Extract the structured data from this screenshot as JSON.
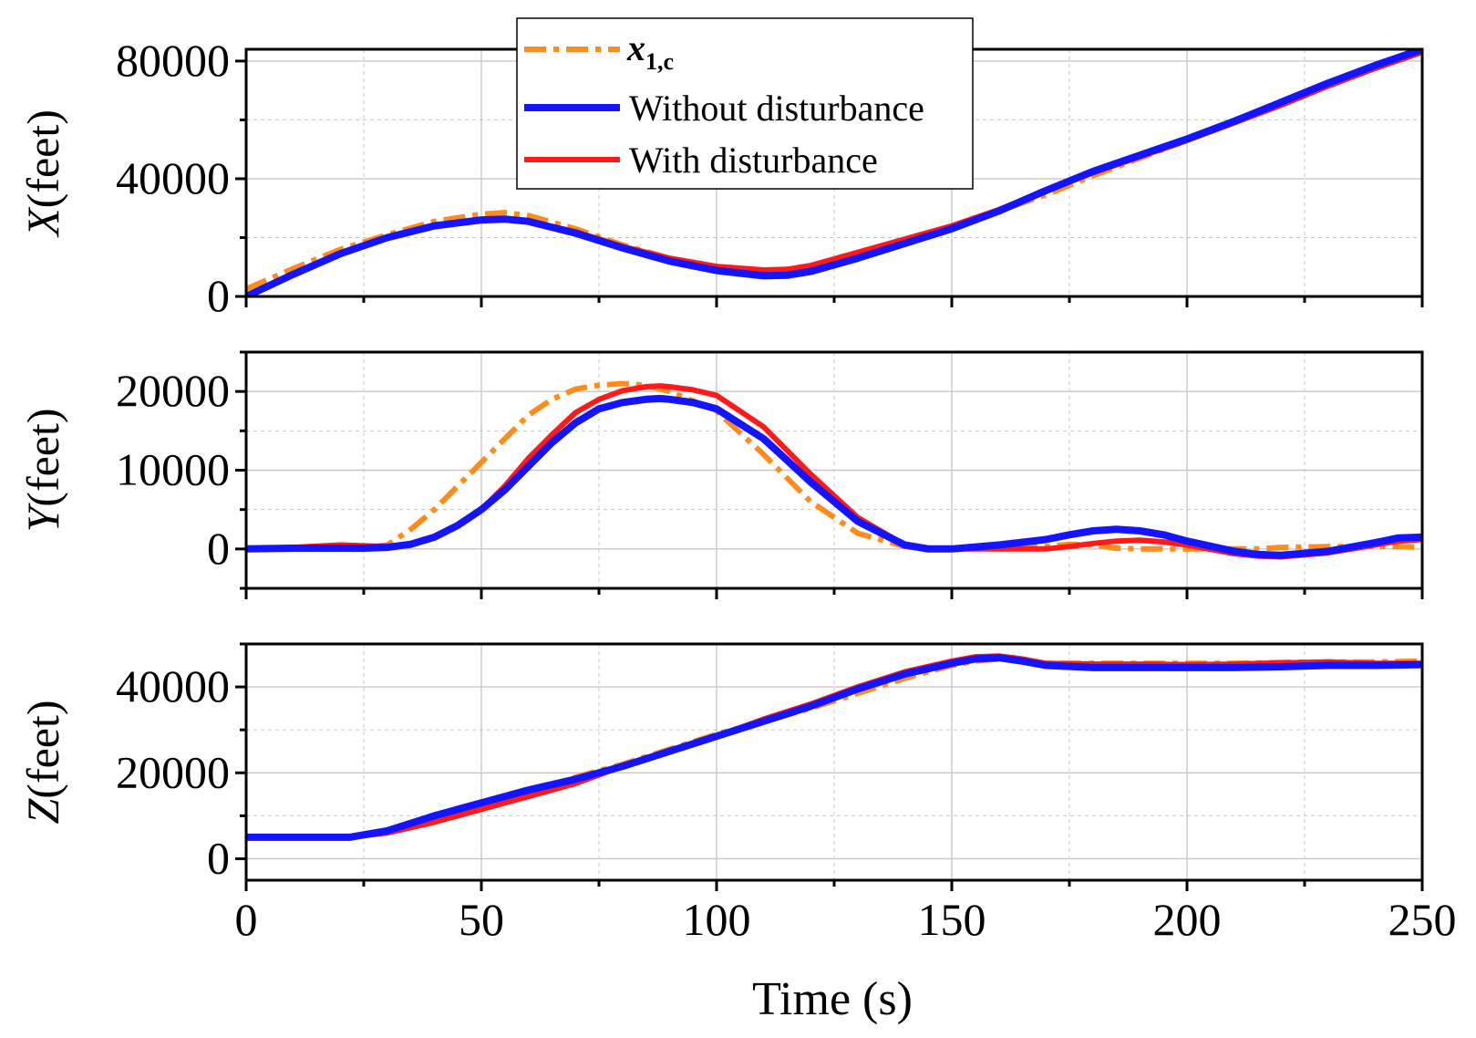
{
  "chart_data": [
    {
      "type": "line",
      "ylabel": "X(feet)",
      "ylabel_var": "X",
      "ylabel_unit": "(feet)",
      "xlim": [
        0,
        250
      ],
      "ylim": [
        0,
        84000
      ],
      "yticks": [
        0,
        40000,
        80000
      ],
      "ytick_labels": [
        "0",
        "40000",
        "80000"
      ],
      "grid": true,
      "series": [
        {
          "name": "x1c",
          "x": [
            0,
            10,
            20,
            30,
            40,
            50,
            55,
            60,
            70,
            80,
            90,
            100,
            110,
            115,
            120,
            130,
            140,
            150,
            160,
            170,
            180,
            190,
            200,
            210,
            220,
            230,
            240,
            250
          ],
          "y": [
            2500,
            9500,
            16000,
            21000,
            25500,
            28000,
            28500,
            27500,
            23000,
            17500,
            13000,
            10000,
            8500,
            8500,
            9500,
            13500,
            18000,
            23000,
            29000,
            34500,
            41000,
            47000,
            53000,
            59000,
            65500,
            72000,
            78000,
            83500
          ]
        },
        {
          "name": "Without disturbance",
          "x": [
            0,
            10,
            20,
            30,
            40,
            50,
            55,
            60,
            70,
            80,
            90,
            100,
            110,
            115,
            120,
            130,
            140,
            150,
            160,
            170,
            180,
            190,
            200,
            210,
            220,
            230,
            240,
            250
          ],
          "y": [
            0,
            7500,
            14500,
            20000,
            24000,
            26000,
            26300,
            25500,
            21500,
            16500,
            12000,
            8800,
            7000,
            7200,
            8500,
            13000,
            18000,
            23000,
            29000,
            36000,
            42500,
            48000,
            53500,
            59500,
            66000,
            72500,
            78500,
            84000
          ]
        },
        {
          "name": "With disturbance",
          "x": [
            0,
            10,
            20,
            30,
            40,
            50,
            55,
            60,
            70,
            80,
            90,
            100,
            110,
            115,
            120,
            130,
            140,
            150,
            160,
            170,
            180,
            190,
            200,
            210,
            220,
            230,
            240,
            250
          ],
          "y": [
            0,
            7500,
            14500,
            20000,
            24000,
            25800,
            26000,
            25500,
            22000,
            17000,
            13000,
            10200,
            9000,
            9200,
            10500,
            15000,
            19500,
            24000,
            29500,
            36000,
            42000,
            47500,
            53000,
            59000,
            65000,
            71500,
            77500,
            83000
          ]
        }
      ]
    },
    {
      "type": "line",
      "ylabel": "Y(feet)",
      "ylabel_var": "Y",
      "ylabel_unit": "(feet)",
      "xlim": [
        0,
        250
      ],
      "ylim": [
        -5000,
        25000
      ],
      "yticks": [
        0,
        10000,
        20000
      ],
      "ytick_labels": [
        "0",
        "10000",
        "20000"
      ],
      "grid": true,
      "series": [
        {
          "name": "x1c",
          "x": [
            0,
            10,
            20,
            25,
            30,
            35,
            40,
            45,
            50,
            55,
            60,
            65,
            70,
            75,
            80,
            85,
            90,
            95,
            100,
            110,
            120,
            130,
            140,
            145,
            150,
            160,
            170,
            175,
            180,
            185,
            190,
            195,
            200,
            210,
            215,
            220,
            230,
            240,
            245,
            250
          ],
          "y": [
            0,
            100,
            200,
            200,
            500,
            2500,
            5000,
            8000,
            11000,
            14000,
            17000,
            19000,
            20300,
            20800,
            21000,
            20800,
            20000,
            18800,
            17500,
            12000,
            6000,
            2000,
            300,
            0,
            0,
            100,
            300,
            600,
            500,
            100,
            0,
            0,
            0,
            0,
            0,
            200,
            300,
            300,
            300,
            200
          ]
        },
        {
          "name": "Without disturbance",
          "x": [
            0,
            10,
            20,
            25,
            30,
            35,
            40,
            45,
            50,
            55,
            60,
            65,
            70,
            75,
            80,
            85,
            88,
            90,
            95,
            100,
            110,
            120,
            130,
            140,
            145,
            150,
            160,
            170,
            175,
            180,
            185,
            190,
            195,
            200,
            210,
            215,
            220,
            230,
            240,
            245,
            250
          ],
          "y": [
            0,
            100,
            100,
            100,
            200,
            600,
            1500,
            3000,
            5000,
            7500,
            10500,
            13500,
            16000,
            17800,
            18600,
            19000,
            19100,
            19000,
            18600,
            17800,
            14000,
            8500,
            3500,
            500,
            0,
            0,
            500,
            1200,
            1800,
            2300,
            2500,
            2300,
            1800,
            1000,
            -300,
            -700,
            -800,
            -300,
            800,
            1400,
            1500
          ]
        },
        {
          "name": "With disturbance",
          "x": [
            0,
            10,
            20,
            25,
            30,
            35,
            40,
            45,
            50,
            55,
            60,
            65,
            70,
            75,
            80,
            85,
            88,
            90,
            95,
            100,
            110,
            120,
            130,
            140,
            145,
            150,
            160,
            170,
            175,
            180,
            185,
            190,
            195,
            200,
            210,
            215,
            220,
            230,
            240,
            245,
            250
          ],
          "y": [
            0,
            200,
            500,
            400,
            300,
            600,
            1500,
            3000,
            5000,
            8000,
            11500,
            14500,
            17300,
            19000,
            20100,
            20600,
            20700,
            20600,
            20200,
            19500,
            15500,
            9500,
            4000,
            500,
            0,
            0,
            0,
            0,
            300,
            700,
            1000,
            1100,
            900,
            500,
            -600,
            -900,
            -1000,
            -500,
            500,
            1000,
            1200
          ]
        }
      ]
    },
    {
      "type": "line",
      "ylabel": "Z(feet)",
      "ylabel_var": "Z",
      "ylabel_unit": "(feet)",
      "xlim": [
        0,
        250
      ],
      "ylim": [
        -5000,
        50000
      ],
      "yticks": [
        0,
        20000,
        40000
      ],
      "ytick_labels": [
        "0",
        "20000",
        "40000"
      ],
      "grid": true,
      "series": [
        {
          "name": "x1c",
          "x": [
            0,
            10,
            20,
            22,
            30,
            40,
            50,
            60,
            70,
            80,
            90,
            100,
            110,
            120,
            130,
            140,
            150,
            155,
            160,
            165,
            170,
            180,
            190,
            200,
            210,
            220,
            230,
            240,
            250
          ],
          "y": [
            5000,
            5000,
            5000,
            5000,
            6000,
            9000,
            12000,
            15500,
            19000,
            22000,
            25500,
            29000,
            32000,
            35000,
            38500,
            42000,
            45000,
            46000,
            46500,
            46000,
            45500,
            45500,
            45500,
            45500,
            45500,
            45700,
            45800,
            45800,
            46000
          ]
        },
        {
          "name": "Without disturbance",
          "x": [
            0,
            10,
            20,
            22,
            30,
            40,
            50,
            60,
            70,
            80,
            90,
            100,
            110,
            120,
            130,
            140,
            150,
            155,
            160,
            165,
            170,
            180,
            190,
            200,
            210,
            220,
            230,
            240,
            250
          ],
          "y": [
            5000,
            5000,
            5000,
            5000,
            6500,
            10000,
            13000,
            16000,
            18500,
            21500,
            25000,
            28500,
            32000,
            35500,
            39500,
            43000,
            45500,
            46500,
            46800,
            46000,
            45000,
            44500,
            44500,
            44500,
            44500,
            44700,
            45000,
            45000,
            45200
          ]
        },
        {
          "name": "With disturbance",
          "x": [
            0,
            10,
            20,
            22,
            30,
            40,
            50,
            60,
            70,
            80,
            90,
            100,
            110,
            120,
            130,
            140,
            150,
            155,
            160,
            165,
            170,
            180,
            190,
            200,
            210,
            220,
            230,
            240,
            250
          ],
          "y": [
            5000,
            5000,
            5000,
            5000,
            6000,
            8500,
            11500,
            14500,
            17500,
            21500,
            25000,
            28500,
            32500,
            36000,
            40000,
            43500,
            46000,
            47000,
            47200,
            46500,
            45500,
            45300,
            45300,
            45200,
            45300,
            45600,
            45800,
            45500,
            45500
          ]
        }
      ]
    }
  ],
  "xaxis": {
    "label": "Time (s)",
    "ticks": [
      0,
      50,
      100,
      150,
      200,
      250
    ],
    "tick_labels": [
      "0",
      "50",
      "100",
      "150",
      "200",
      "250"
    ]
  },
  "legend": {
    "placement": "top-center",
    "entries": [
      {
        "key": "x1c",
        "label_main": "x",
        "label_sub": "1,c",
        "color": "#ff8c1a",
        "style": "dash-dot"
      },
      {
        "key": "without",
        "label": "Without disturbance",
        "color": "#1414ff",
        "style": "solid"
      },
      {
        "key": "with",
        "label": "With disturbance",
        "color": "#ff1a1a",
        "style": "solid"
      }
    ]
  },
  "colors": {
    "x1c": "#ff8c1a",
    "without": "#1414ff",
    "with": "#ff1a1a",
    "grid": "#c8c8c8",
    "axis": "#000000"
  }
}
